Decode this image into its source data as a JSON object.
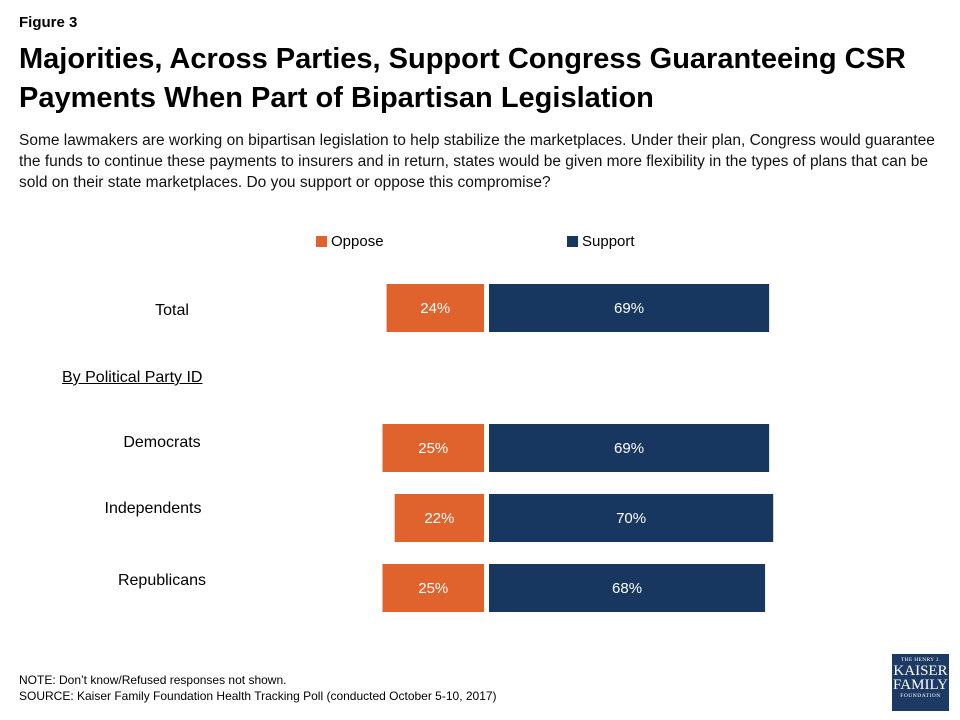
{
  "figure_label": "Figure 3",
  "title": "Majorities, Across Parties, Support Congress Guaranteeing CSR Payments When Part of Bipartisan Legislation",
  "subtitle": "Some lawmakers are working on bipartisan legislation to help stabilize the marketplaces. Under their plan, Congress would guarantee the funds to continue these payments to insurers and in return, states would be given more flexibility in the types of plans that can be sold on their state marketplaces. Do you support or oppose this compromise?",
  "section_label": "By Political Party ID",
  "note": "NOTE: Don’t know/Refused responses not shown.",
  "source": "SOURCE: Kaiser Family Foundation Health Tracking Poll (conducted October 5-10, 2017)",
  "logo": {
    "line1": "THE HENRY J.",
    "line2": "KAISER",
    "line3": "FAMILY",
    "line4": "FOUNDATION"
  },
  "colors": {
    "oppose": "#e0622d",
    "support": "#173660"
  },
  "chart_data": {
    "type": "bar",
    "orientation": "horizontal-diverging",
    "categories": [
      "Total",
      "Democrats",
      "Independents",
      "Republicans"
    ],
    "series": [
      {
        "name": "Oppose",
        "values": [
          24,
          25,
          22,
          25
        ],
        "labels": [
          "24%",
          "25%",
          "22%",
          "25%"
        ]
      },
      {
        "name": "Support",
        "values": [
          69,
          69,
          70,
          68
        ],
        "labels": [
          "69%",
          "69%",
          "70%",
          "68%"
        ]
      }
    ],
    "legend": "top"
  }
}
